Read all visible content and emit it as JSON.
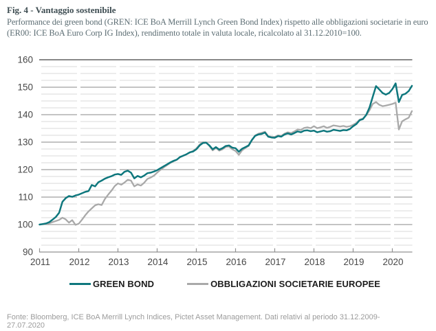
{
  "figure": {
    "title": "Fig. 4 - Vantaggio sostenibile",
    "subtitle_lines": [
      "Performance dei green bond (GREN: ICE BoA Merrill Lynch Green Bond Index) rispetto alle obbligazioni societarie in euro",
      "(ER00: ICE BoA Euro Corp IG Index), rendimento totale in valuta locale, ricalcolato al 31.12.2010=100."
    ]
  },
  "footer": {
    "lines": [
      "Fonte: Bloomberg, ICE BoA Merrill Lynch Indices, Pictet Asset Management. Dati relativi al periodo 31.12.2009-",
      "27.07.2020"
    ]
  },
  "colors": {
    "green_bond": "#0e777d",
    "corporate_bond": "#a9a9a9",
    "grid_minor": "#d8d8d8",
    "grid_major": "#9f9f9f",
    "grid_top": "#616161",
    "axis": "#909090",
    "axis_label": "#474747"
  },
  "chart_data": {
    "type": "line",
    "title": "Vantaggio sostenibile",
    "x_start": "2011-01",
    "x_end": "2020-07",
    "x_frequency": "monthly",
    "x_tick_labels": [
      "2011",
      "2012",
      "2013",
      "2014",
      "2015",
      "2016",
      "2017",
      "2018",
      "2019",
      "2020"
    ],
    "ylim": [
      90,
      160
    ],
    "y_major_step": 10,
    "y_minor_step": 2.5,
    "grid": "on",
    "legend_position": "bottom",
    "baseline_note": "31.12.2010=100",
    "series": [
      {
        "name": "OBBLIGAZIONI SOCIETARIE EUROPEE",
        "color": "#a9a9a9",
        "values": [
          100.0,
          100.1,
          100.2,
          100.5,
          100.9,
          101.3,
          101.7,
          102.5,
          101.9,
          100.7,
          101.6,
          99.9,
          100.3,
          101.8,
          103.4,
          104.8,
          105.9,
          107.0,
          107.4,
          107.1,
          109.3,
          110.9,
          112.3,
          114.0,
          115.0,
          114.5,
          115.3,
          116.3,
          116.0,
          113.9,
          114.6,
          114.2,
          115.2,
          116.6,
          117.1,
          117.8,
          118.9,
          119.9,
          120.8,
          121.6,
          122.4,
          123.0,
          123.6,
          124.5,
          125.0,
          125.6,
          126.2,
          126.8,
          127.7,
          129.1,
          130.0,
          129.9,
          128.6,
          127.0,
          127.9,
          126.9,
          127.4,
          128.3,
          128.4,
          127.4,
          126.8,
          125.4,
          127.0,
          127.9,
          128.6,
          130.7,
          132.4,
          133.1,
          133.4,
          133.8,
          132.2,
          131.9,
          131.9,
          132.5,
          132.3,
          133.1,
          133.6,
          133.3,
          133.9,
          134.6,
          134.4,
          135.2,
          135.4,
          135.1,
          135.8,
          135.1,
          135.4,
          135.8,
          135.2,
          135.6,
          136.1,
          135.9,
          135.7,
          135.9,
          135.6,
          135.8,
          136.3,
          137.0,
          138.2,
          138.6,
          139.8,
          141.6,
          143.9,
          144.6,
          143.6,
          143.1,
          143.3,
          143.6,
          143.9,
          144.4,
          134.6,
          137.6,
          138.3,
          138.9,
          141.3
        ]
      },
      {
        "name": "GREEN BOND",
        "color": "#0e777d",
        "values": [
          100.0,
          100.2,
          100.4,
          100.9,
          101.8,
          102.8,
          104.3,
          108.3,
          109.6,
          110.4,
          110.1,
          110.6,
          110.9,
          111.4,
          111.9,
          112.2,
          114.4,
          113.9,
          115.4,
          116.0,
          116.7,
          117.2,
          117.6,
          118.2,
          118.4,
          118.1,
          119.2,
          119.6,
          118.9,
          116.8,
          117.7,
          117.2,
          117.8,
          118.7,
          118.9,
          119.3,
          119.8,
          120.5,
          121.2,
          121.9,
          122.6,
          123.2,
          123.6,
          124.6,
          125.1,
          125.6,
          126.3,
          126.6,
          127.4,
          128.8,
          129.7,
          129.8,
          128.8,
          127.4,
          128.2,
          127.3,
          127.8,
          128.6,
          128.8,
          128.0,
          127.8,
          126.5,
          127.6,
          128.2,
          128.8,
          130.8,
          132.3,
          132.8,
          133.0,
          133.5,
          132.0,
          131.7,
          131.6,
          132.2,
          132.0,
          132.8,
          133.2,
          132.8,
          133.3,
          133.9,
          133.6,
          134.2,
          134.3,
          134.0,
          134.2,
          133.6,
          133.9,
          134.2,
          133.8,
          134.0,
          134.5,
          134.3,
          134.1,
          134.4,
          134.3,
          134.8,
          135.8,
          136.6,
          138.0,
          138.4,
          139.9,
          142.6,
          146.5,
          150.4,
          149.2,
          147.9,
          147.3,
          147.9,
          149.3,
          151.4,
          144.6,
          147.2,
          147.6,
          148.6,
          150.5
        ]
      }
    ]
  }
}
